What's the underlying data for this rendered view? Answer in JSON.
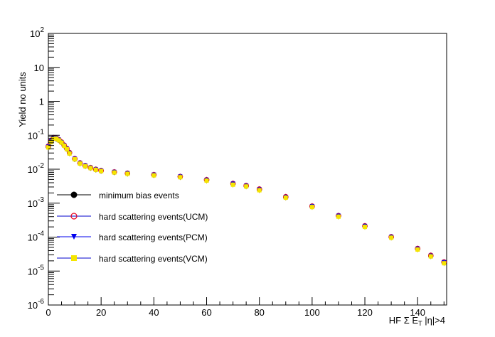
{
  "chart_data": {
    "type": "scatter",
    "xlabel_parts": [
      "HF ",
      "Σ",
      " E",
      "T",
      " |η|>4"
    ],
    "ylabel": "Yield no units",
    "xlim": [
      0,
      151
    ],
    "ylim": [
      1e-06,
      100
    ],
    "y_scale": "log",
    "x_ticks": [
      "0",
      "20",
      "40",
      "60",
      "80",
      "100",
      "120",
      "140"
    ],
    "x_tick_values": [
      0,
      20,
      40,
      60,
      80,
      100,
      120,
      140
    ],
    "y_ticks": [
      {
        "value": 1e-06,
        "base": "10",
        "exp": "-6"
      },
      {
        "value": 1e-05,
        "base": "10",
        "exp": "-5"
      },
      {
        "value": 0.0001,
        "base": "10",
        "exp": "-4"
      },
      {
        "value": 0.001,
        "base": "10",
        "exp": "-3"
      },
      {
        "value": 0.01,
        "base": "10",
        "exp": "-2"
      },
      {
        "value": 0.1,
        "base": "10",
        "exp": "-1"
      },
      {
        "value": 1,
        "base": "1",
        "exp": ""
      },
      {
        "value": 10,
        "base": "10",
        "exp": ""
      },
      {
        "value": 100,
        "base": "10",
        "exp": "2"
      }
    ],
    "grid": false,
    "legend_position": "left-lower-middle",
    "x": [
      0,
      1,
      2,
      3,
      4,
      5,
      6,
      7,
      8,
      10,
      12,
      14,
      16,
      18,
      20,
      25,
      30,
      40,
      50,
      60,
      70,
      75,
      80,
      90,
      100,
      110,
      120,
      130,
      140,
      145,
      150
    ],
    "series": [
      {
        "name": "minimum bias events",
        "marker": "filled-circle",
        "color": "#000000",
        "values": [
          0.045,
          0.065,
          0.082,
          0.08,
          0.072,
          0.062,
          0.05,
          0.04,
          0.03,
          0.02,
          0.015,
          0.0125,
          0.011,
          0.0098,
          0.009,
          0.0082,
          0.0075,
          0.0068,
          0.006,
          0.0048,
          0.0037,
          0.0032,
          0.0025,
          0.0015,
          0.0008,
          0.00042,
          0.00021,
          0.0001,
          4.5e-05,
          2.8e-05,
          1.8e-05
        ]
      },
      {
        "name": "hard scattering events(UCM)",
        "marker": "open-circle",
        "color": "#e8001c",
        "values": [
          0.048,
          0.07,
          0.085,
          0.082,
          0.074,
          0.063,
          0.051,
          0.041,
          0.031,
          0.0205,
          0.0153,
          0.0127,
          0.0111,
          0.0099,
          0.0091,
          0.0083,
          0.0076,
          0.0069,
          0.0061,
          0.0049,
          0.0038,
          0.0033,
          0.0026,
          0.00155,
          0.00082,
          0.00043,
          0.000215,
          0.000102,
          4.6e-05,
          2.9e-05,
          1.85e-05
        ]
      },
      {
        "name": "hard scattering events(PCM)",
        "marker": "triangle-down",
        "color": "#0000ee",
        "values": [
          0.046,
          0.066,
          0.083,
          0.081,
          0.073,
          0.062,
          0.05,
          0.04,
          0.03,
          0.02,
          0.015,
          0.0126,
          0.011,
          0.0098,
          0.009,
          0.0082,
          0.0075,
          0.0068,
          0.006,
          0.0048,
          0.0037,
          0.0032,
          0.0025,
          0.0015,
          0.0008,
          0.00042,
          0.00021,
          0.0001,
          4.5e-05,
          2.8e-05,
          1.8e-05
        ]
      },
      {
        "name": "hard scattering events(VCM)",
        "marker": "filled-square",
        "color": "#f5e500",
        "values": [
          0.044,
          0.063,
          0.08,
          0.079,
          0.071,
          0.061,
          0.049,
          0.039,
          0.029,
          0.0196,
          0.0147,
          0.0122,
          0.0108,
          0.0096,
          0.0088,
          0.008,
          0.0073,
          0.0066,
          0.0058,
          0.0046,
          0.0035,
          0.0031,
          0.0024,
          0.00145,
          0.00077,
          0.0004,
          0.0002,
          9.6e-05,
          4.3e-05,
          2.7e-05,
          1.7e-05
        ]
      }
    ]
  }
}
